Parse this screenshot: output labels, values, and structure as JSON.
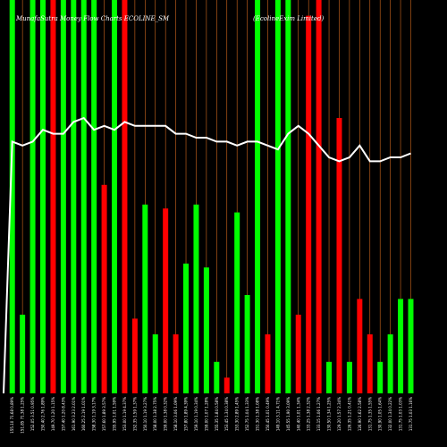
{
  "chart_data": {
    "type": "bar",
    "title": "MunafaSutra Money Flow Charts ECOLINE_SM",
    "subtitle": "(EcolineExim Limited)",
    "ylim": [
      0,
      100
    ],
    "bar_colors": {
      "up": "#00ff00",
      "down": "#ff0000",
      "line": "#ffffff",
      "grid": "#d2691e",
      "background": "#000000"
    },
    "categories": [
      "155.10 71.68 0.89%",
      "151.85 71.38 1.25%",
      "152.05 3.51 0.95%",
      "150.40 2.76 1.89%",
      "149.70 1.20 1.15%",
      "157.40 1.20 8.43%",
      "161.90 3.23 2.01%",
      "160.25 2.19 1.01%",
      "158.30 1.19 3.17%",
      "157.60 1.89 3.57%",
      "155.95 1.01 1.59%",
      "153.00 1.19 4.37%",
      "152.35 1.59 1.37%",
      "150.10 1.19 3.27%",
      "158.00 1.38 2.75%",
      "159.00 1.38 0.32%",
      "158.10 3.06 1.09%",
      "157.80 1.89 4.39%",
      "159.10 1.19 0.34%",
      "159.00 1.07 1.28%",
      "155.35 1.84 0.58%",
      "153.45 1.34 0.38%",
      "153.30 2.89 1.45%",
      "152.75 1.04 1.33%",
      "151.30 1.38 1.08%",
      "150.45 1.01 0.49%",
      "149.10 3.11 4.71%",
      "145.55 1.90 3.09%",
      "140.40 1.01 1.34%",
      "133.25 1.38 2.32%",
      "133.15 1.06 1.27%",
      "130.50 1.34 1.25%",
      "129.20 1.57 2.34%",
      "126.35 1.21 0.41%",
      "126.90 1.62 2.58%",
      "131.75 1.35 1.55%",
      "130.90 1.05 1.64%",
      "132.00 1.34 0.22%",
      "131.75 1.03 1.03%",
      "131.75 1.03 1.16%"
    ],
    "bars": [
      {
        "dir": "up",
        "value": 100
      },
      {
        "dir": "up",
        "value": 20
      },
      {
        "dir": "up",
        "value": 100
      },
      {
        "dir": "up",
        "value": 100
      },
      {
        "dir": "down",
        "value": 100
      },
      {
        "dir": "up",
        "value": 100
      },
      {
        "dir": "up",
        "value": 100
      },
      {
        "dir": "up",
        "value": 100
      },
      {
        "dir": "up",
        "value": 100
      },
      {
        "dir": "down",
        "value": 53
      },
      {
        "dir": "up",
        "value": 100
      },
      {
        "dir": "down",
        "value": 100
      },
      {
        "dir": "down",
        "value": 19
      },
      {
        "dir": "up",
        "value": 48
      },
      {
        "dir": "up",
        "value": 15
      },
      {
        "dir": "down",
        "value": 47
      },
      {
        "dir": "down",
        "value": 15
      },
      {
        "dir": "up",
        "value": 33
      },
      {
        "dir": "up",
        "value": 48
      },
      {
        "dir": "up",
        "value": 32
      },
      {
        "dir": "up",
        "value": 8
      },
      {
        "dir": "down",
        "value": 4
      },
      {
        "dir": "up",
        "value": 46
      },
      {
        "dir": "up",
        "value": 25
      },
      {
        "dir": "up",
        "value": 100
      },
      {
        "dir": "down",
        "value": 15
      },
      {
        "dir": "up",
        "value": 100
      },
      {
        "dir": "up",
        "value": 100
      },
      {
        "dir": "down",
        "value": 20
      },
      {
        "dir": "down",
        "value": 96
      },
      {
        "dir": "down",
        "value": 100
      },
      {
        "dir": "up",
        "value": 8
      },
      {
        "dir": "down",
        "value": 70
      },
      {
        "dir": "up",
        "value": 8
      },
      {
        "dir": "down",
        "value": 24
      },
      {
        "dir": "down",
        "value": 15
      },
      {
        "dir": "up",
        "value": 8
      },
      {
        "dir": "up",
        "value": 15
      },
      {
        "dir": "up",
        "value": 24
      },
      {
        "dir": "up",
        "value": 24
      }
    ],
    "line": [
      64,
      63,
      64,
      67,
      66,
      66,
      69,
      70,
      67,
      68,
      67,
      69,
      68,
      68,
      68,
      68,
      66,
      66,
      65,
      65,
      64,
      64,
      63,
      64,
      64,
      63,
      62,
      66,
      68,
      66,
      63,
      60,
      59,
      60,
      63,
      59,
      59,
      60,
      60,
      61
    ]
  }
}
